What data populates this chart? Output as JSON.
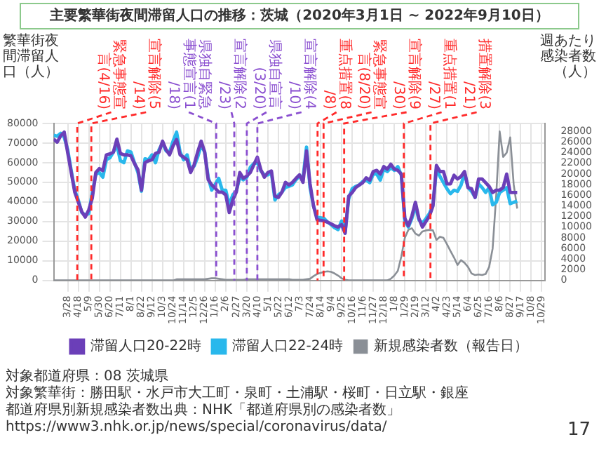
{
  "chart_data": {
    "type": "line",
    "title": "主要繁華街夜間滞留人口の推移：茨城（2020年3月1日 ~ 2022年9月10日）",
    "ylabel": "繁華街夜間滞留人口（人）",
    "y2label": "週あたり感染者数（人）",
    "x": [
      "2020-02-29",
      "2020-03-07",
      "2020-03-14",
      "2020-03-21",
      "2020-03-28",
      "2020-04-04",
      "2020-04-11",
      "2020-04-18",
      "2020-04-25",
      "2020-05-02",
      "2020-05-09",
      "2020-05-16",
      "2020-05-23",
      "2020-05-30",
      "2020-06-06",
      "2020-06-13",
      "2020-06-20",
      "2020-06-27",
      "2020-07-04",
      "2020-07-11",
      "2020-07-18",
      "2020-07-25",
      "2020-08-01",
      "2020-08-08",
      "2020-08-15",
      "2020-08-22",
      "2020-08-29",
      "2020-09-05",
      "2020-09-12",
      "2020-09-19",
      "2020-09-26",
      "2020-10-03",
      "2020-10-10",
      "2020-10-17",
      "2020-10-24",
      "2020-10-31",
      "2020-11-07",
      "2020-11-14",
      "2020-11-21",
      "2020-11-28",
      "2020-12-05",
      "2020-12-12",
      "2020-12-19",
      "2020-12-26",
      "2021-01-02",
      "2021-01-09",
      "2021-01-16",
      "2021-01-23",
      "2021-01-30",
      "2021-02-06",
      "2021-02-13",
      "2021-02-20",
      "2021-02-27",
      "2021-03-06",
      "2021-03-13",
      "2021-03-20",
      "2021-03-27",
      "2021-04-03",
      "2021-04-10",
      "2021-04-17",
      "2021-04-24",
      "2021-05-01",
      "2021-05-08",
      "2021-05-15",
      "2021-05-22",
      "2021-05-29",
      "2021-06-05",
      "2021-06-12",
      "2021-06-19",
      "2021-06-26",
      "2021-07-03",
      "2021-07-10",
      "2021-07-17",
      "2021-07-24",
      "2021-07-31",
      "2021-08-07",
      "2021-08-14",
      "2021-08-21",
      "2021-08-28",
      "2021-09-04",
      "2021-09-11",
      "2021-09-18",
      "2021-09-25",
      "2021-10-02",
      "2021-10-09",
      "2021-10-16",
      "2021-10-23",
      "2021-10-30",
      "2021-11-06",
      "2021-11-13",
      "2021-11-20",
      "2021-11-27",
      "2021-12-04",
      "2021-12-11",
      "2021-12-18",
      "2021-12-25",
      "2022-01-01",
      "2022-01-08",
      "2022-01-15",
      "2022-01-22",
      "2022-01-29",
      "2022-02-05",
      "2022-02-12",
      "2022-02-19",
      "2022-02-26",
      "2022-03-05",
      "2022-03-12",
      "2022-03-19",
      "2022-03-26",
      "2022-04-02",
      "2022-04-09",
      "2022-04-16",
      "2022-04-23",
      "2022-04-30",
      "2022-05-07",
      "2022-05-14",
      "2022-05-21",
      "2022-05-28",
      "2022-06-04",
      "2022-06-11",
      "2022-06-18",
      "2022-06-25",
      "2022-07-02",
      "2022-07-09",
      "2022-07-16",
      "2022-07-23",
      "2022-07-30",
      "2022-08-06",
      "2022-08-13",
      "2022-08-20",
      "2022-08-27",
      "2022-09-03",
      "2022-09-10"
    ],
    "series": [
      {
        "name": "滞留人口20-22時",
        "color": "#6b3fb8",
        "values": [
          72000,
          70500,
          73700,
          75600,
          65000,
          55000,
          45000,
          40000,
          35000,
          32300,
          36000,
          42000,
          55000,
          57000,
          56000,
          64000,
          64500,
          65400,
          72000,
          64700,
          64000,
          64000,
          63500,
          59600,
          56400,
          46000,
          60000,
          61000,
          61500,
          64700,
          65400,
          71000,
          66600,
          64000,
          68600,
          71800,
          64000,
          62800,
          61500,
          55000,
          59000,
          65400,
          71000,
          65400,
          51300,
          48700,
          47000,
          45000,
          45000,
          43600,
          34600,
          41000,
          45000,
          55000,
          52000,
          53200,
          55000,
          59000,
          62800,
          56400,
          52600,
          55000,
          55800,
          43000,
          42300,
          45000,
          50000,
          48700,
          50000,
          52000,
          53800,
          50000,
          66000,
          49200,
          37900,
          30900,
          30600,
          30300,
          29700,
          28800,
          27800,
          27200,
          28400,
          24000,
          42900,
          44800,
          47300,
          48600,
          49800,
          52300,
          51100,
          55500,
          56100,
          54200,
          58000,
          56700,
          59200,
          56700,
          56100,
          54200,
          31600,
          27800,
          32800,
          39800,
          31600,
          27200,
          30000,
          32800,
          37900,
          58600,
          55500,
          55500,
          49200,
          49200,
          53600,
          51700,
          53000,
          55500,
          47300,
          46700,
          42300,
          51700,
          51700,
          49800,
          47900,
          44800,
          46000,
          46000,
          47300,
          54200,
          44800,
          44800,
          44800
        ]
      },
      {
        "name": "滞留人口22-24時",
        "color": "#29b8ec",
        "values": [
          74000,
          73500,
          75000,
          73000,
          66500,
          56000,
          46000,
          41000,
          34600,
          33300,
          34000,
          45000,
          54000,
          55000,
          52600,
          61500,
          62500,
          65400,
          69000,
          61000,
          60000,
          66000,
          65400,
          60000,
          55000,
          45500,
          62000,
          61500,
          64000,
          60000,
          66600,
          70000,
          66000,
          65400,
          71000,
          75600,
          65400,
          61500,
          64000,
          56400,
          58300,
          62800,
          69000,
          65400,
          52600,
          46000,
          49000,
          52000,
          46000,
          46000,
          38500,
          43600,
          45500,
          52600,
          51300,
          52600,
          57700,
          59600,
          60000,
          55800,
          53800,
          53800,
          55000,
          41000,
          43600,
          45000,
          47400,
          48000,
          48700,
          51300,
          53200,
          52000,
          68000,
          47300,
          37900,
          32200,
          31900,
          31600,
          29700,
          28400,
          26800,
          25900,
          30300,
          24700,
          41600,
          46700,
          47900,
          48600,
          50400,
          51100,
          49800,
          54200,
          54200,
          51100,
          56700,
          55500,
          57400,
          56100,
          58000,
          53600,
          30300,
          27200,
          31600,
          37900,
          30900,
          29100,
          31500,
          34100,
          38500,
          56700,
          53000,
          49800,
          46700,
          44200,
          46000,
          45400,
          48600,
          54800,
          47300,
          45400,
          42300,
          49200,
          47300,
          44800,
          47300,
          38500,
          39800,
          44800,
          46000,
          47300,
          39100,
          39800,
          40400
        ]
      },
      {
        "name": "新規感染者数（報告日）",
        "color": "#8a8f96",
        "axis": "y2",
        "values": [
          0,
          0,
          0,
          0,
          0,
          0,
          0,
          0,
          0,
          0,
          0,
          0,
          0,
          0,
          0,
          0,
          0,
          0,
          0,
          0,
          0,
          0,
          0,
          0,
          0,
          0,
          0,
          0,
          0,
          0,
          0,
          0,
          0,
          0,
          0,
          200,
          200,
          200,
          200,
          200,
          200,
          200,
          200,
          200,
          300,
          400,
          400,
          300,
          200,
          100,
          100,
          100,
          100,
          100,
          100,
          200,
          200,
          200,
          200,
          200,
          200,
          200,
          200,
          200,
          200,
          200,
          200,
          200,
          100,
          100,
          100,
          100,
          200,
          300,
          800,
          1200,
          1400,
          1600,
          1700,
          1600,
          1300,
          900,
          400,
          100,
          0,
          0,
          0,
          0,
          0,
          0,
          0,
          0,
          0,
          0,
          0,
          0,
          300,
          900,
          1800,
          4500,
          8000,
          9500,
          9800,
          8800,
          8400,
          9200,
          9400,
          9500,
          9400,
          7600,
          8200,
          8000,
          6800,
          5500,
          4300,
          2900,
          3800,
          3300,
          2500,
          1300,
          1000,
          1100,
          1000,
          1200,
          2500,
          6000,
          15800,
          28000,
          23200,
          24000,
          26900,
          18000,
          13500
        ]
      }
    ],
    "xlim": [
      "2020-02-29",
      "2022-11-05"
    ],
    "xticks": [
      {
        "value": "2020-03-28",
        "label": "3/28"
      },
      {
        "value": "2020-04-18",
        "label": "4/18"
      },
      {
        "value": "2020-05-09",
        "label": "5/9"
      },
      {
        "value": "2020-05-30",
        "label": "5/30"
      },
      {
        "value": "2020-06-20",
        "label": "6/20"
      },
      {
        "value": "2020-07-11",
        "label": "7/11"
      },
      {
        "value": "2020-08-01",
        "label": "8/1"
      },
      {
        "value": "2020-08-22",
        "label": "8/22"
      },
      {
        "value": "2020-09-12",
        "label": "9/12"
      },
      {
        "value": "2020-10-03",
        "label": "10/3"
      },
      {
        "value": "2020-10-24",
        "label": "10/24"
      },
      {
        "value": "2020-11-14",
        "label": "11/14"
      },
      {
        "value": "2020-12-05",
        "label": "12/5"
      },
      {
        "value": "2020-12-26",
        "label": "12/26"
      },
      {
        "value": "2021-01-16",
        "label": "1/16"
      },
      {
        "value": "2021-02-06",
        "label": "2/6"
      },
      {
        "value": "2021-02-27",
        "label": "2/27"
      },
      {
        "value": "2021-03-20",
        "label": "3/20"
      },
      {
        "value": "2021-04-10",
        "label": "4/10"
      },
      {
        "value": "2021-05-01",
        "label": "5/1"
      },
      {
        "value": "2021-05-22",
        "label": "5/22"
      },
      {
        "value": "2021-06-12",
        "label": "6/12"
      },
      {
        "value": "2021-07-03",
        "label": "7/3"
      },
      {
        "value": "2021-07-24",
        "label": "7/24"
      },
      {
        "value": "2021-08-14",
        "label": "8/14"
      },
      {
        "value": "2021-09-04",
        "label": "9/4"
      },
      {
        "value": "2021-09-25",
        "label": "9/25"
      },
      {
        "value": "2021-10-16",
        "label": "10/16"
      },
      {
        "value": "2021-11-06",
        "label": "11/6"
      },
      {
        "value": "2021-11-27",
        "label": "11/27"
      },
      {
        "value": "2021-12-18",
        "label": "12/18"
      },
      {
        "value": "2022-01-08",
        "label": "1/8"
      },
      {
        "value": "2022-01-29",
        "label": "1/29"
      },
      {
        "value": "2022-02-19",
        "label": "2/19"
      },
      {
        "value": "2022-03-12",
        "label": "3/12"
      },
      {
        "value": "2022-04-02",
        "label": "4/2"
      },
      {
        "value": "2022-04-23",
        "label": "4/23"
      },
      {
        "value": "2022-05-14",
        "label": "5/14"
      },
      {
        "value": "2022-06-04",
        "label": "6/4"
      },
      {
        "value": "2022-06-25",
        "label": "6/25"
      },
      {
        "value": "2022-07-16",
        "label": "7/16"
      },
      {
        "value": "2022-08-06",
        "label": "8/6"
      },
      {
        "value": "2022-08-27",
        "label": "8/27"
      },
      {
        "value": "2022-09-17",
        "label": "9/17"
      },
      {
        "value": "2022-10-08",
        "label": "10/8"
      },
      {
        "value": "2022-10-29",
        "label": "10/29"
      }
    ],
    "ylim": [
      0,
      80000
    ],
    "yticks": [
      0,
      10000,
      20000,
      30000,
      40000,
      50000,
      60000,
      70000,
      80000
    ],
    "y2lim": [
      0,
      29500
    ],
    "y2ticks": [
      0,
      2000,
      4000,
      6000,
      8000,
      10000,
      12000,
      14000,
      16000,
      18000,
      20000,
      22000,
      24000,
      26000,
      28000
    ],
    "ref_lines": [
      {
        "axis": "x",
        "value": "2020-04-16",
        "label": "緊急事態宣言(4/16)",
        "color": "#ff2a2a",
        "line_style": "dashed"
      },
      {
        "axis": "x",
        "value": "2020-05-14",
        "label": "宣言解除(5/14)",
        "color": "#ff2a2a",
        "line_style": "dashed"
      },
      {
        "axis": "x",
        "value": "2021-01-18",
        "label": "県独自緊急事態宣言(1/18)",
        "color": "#8a4fd0",
        "line_style": "dashed"
      },
      {
        "axis": "x",
        "value": "2021-02-23",
        "label": "宣言解除(2/23)",
        "color": "#8a4fd0",
        "line_style": "dashed"
      },
      {
        "axis": "x",
        "value": "2021-03-20",
        "label": "県独自宣言(3/20)",
        "color": "#8a4fd0",
        "line_style": "dashed"
      },
      {
        "axis": "x",
        "value": "2021-04-10",
        "label": "宣言解除(4/10)",
        "color": "#8a4fd0",
        "line_style": "dashed"
      },
      {
        "axis": "x",
        "value": "2021-08-08",
        "label": "重点措置(8/8)",
        "color": "#ff2a2a",
        "line_style": "dashed"
      },
      {
        "axis": "x",
        "value": "2021-08-20",
        "label": "緊急事態宣言(8/20)",
        "color": "#ff2a2a",
        "line_style": "dashed"
      },
      {
        "axis": "x",
        "value": "2021-09-30",
        "label": "宣言解除(9/30)",
        "color": "#ff2a2a",
        "line_style": "dashed"
      },
      {
        "axis": "x",
        "value": "2022-01-27",
        "label": "重点措置(1/27)",
        "color": "#ff2a2a",
        "line_style": "dashed"
      },
      {
        "axis": "x",
        "value": "2022-03-21",
        "label": "措置解除(3/21)",
        "color": "#ff2a2a",
        "line_style": "dashed"
      }
    ],
    "grid": true,
    "legend": "bottom",
    "annotations": [
      "対象都道府県：08 茨城県",
      "対象繁華街：勝田駅・水戸市大工町・泉町・土浦駅・桜町・日立駅・銀座",
      "都道府県別新規感染者数出典：NHK「都道府県別の感染者数」 https://www3.nhk.or.jp/news/special/coronavirus/data/",
      "17"
    ]
  }
}
